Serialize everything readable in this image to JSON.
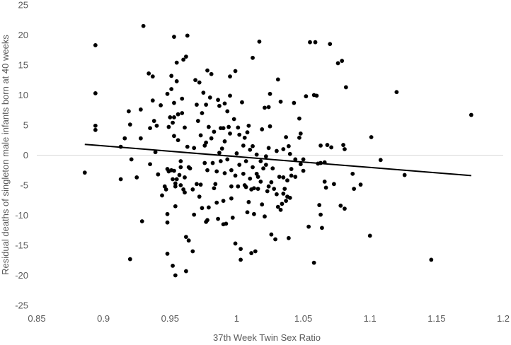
{
  "chart_data": {
    "type": "scatter",
    "xlabel": "37th Week Twin Sex Ratio",
    "ylabel": "Residual deaths of singleton male infants born at 40 weeks",
    "xlim": [
      0.85,
      1.2
    ],
    "ylim": [
      -25,
      25
    ],
    "x_ticks": [
      "0.85",
      "0.9",
      "0.95",
      "1",
      "1.05",
      "1.1",
      "1.15",
      "1.2"
    ],
    "y_ticks": [
      "25",
      "20",
      "15",
      "10",
      "5",
      "0",
      "-5",
      "-10",
      "-15",
      "-20",
      "-25"
    ],
    "grid": false,
    "legend": "none",
    "marker_color": "#000000",
    "trendline": {
      "type": "linear",
      "x": [
        0.886,
        1.176
      ],
      "y": [
        1.8,
        -3.4
      ],
      "color": "#000000"
    },
    "points": [
      [
        0.886,
        -2.9
      ],
      [
        0.894,
        18.3
      ],
      [
        0.894,
        10.3
      ],
      [
        0.894,
        4.9
      ],
      [
        0.894,
        4.2
      ],
      [
        0.913,
        1.4
      ],
      [
        0.913,
        -4.0
      ],
      [
        0.916,
        2.8
      ],
      [
        0.919,
        7.3
      ],
      [
        0.92,
        5.1
      ],
      [
        0.92,
        -17.3
      ],
      [
        0.921,
        -0.7
      ],
      [
        0.925,
        -3.7
      ],
      [
        0.928,
        2.8
      ],
      [
        0.928,
        7.6
      ],
      [
        0.929,
        -11.0
      ],
      [
        0.93,
        21.5
      ],
      [
        0.934,
        13.6
      ],
      [
        0.935,
        4.5
      ],
      [
        0.935,
        -1.5
      ],
      [
        0.937,
        13.1
      ],
      [
        0.937,
        9.1
      ],
      [
        0.938,
        5.7
      ],
      [
        0.939,
        0.5
      ],
      [
        0.94,
        4.9
      ],
      [
        0.941,
        -3.2
      ],
      [
        0.943,
        8.3
      ],
      [
        0.944,
        -6.7
      ],
      [
        0.946,
        -5.2
      ],
      [
        0.947,
        -5.7
      ],
      [
        0.948,
        -2.3
      ],
      [
        0.948,
        10.2
      ],
      [
        0.948,
        -9.8
      ],
      [
        0.948,
        -11.2
      ],
      [
        0.948,
        -16.4
      ],
      [
        0.949,
        -2.7
      ],
      [
        0.949,
        4.7
      ],
      [
        0.95,
        6.3
      ],
      [
        0.951,
        13.2
      ],
      [
        0.951,
        11.0
      ],
      [
        0.951,
        -2.5
      ],
      [
        0.952,
        5.4
      ],
      [
        0.952,
        -4.0
      ],
      [
        0.952,
        -18.4
      ],
      [
        0.953,
        19.7
      ],
      [
        0.953,
        8.7
      ],
      [
        0.953,
        6.3
      ],
      [
        0.953,
        3.2
      ],
      [
        0.953,
        -2.6
      ],
      [
        0.954,
        -4.7
      ],
      [
        0.954,
        -5.2
      ],
      [
        0.954,
        -8.5
      ],
      [
        0.954,
        -20.0
      ],
      [
        0.955,
        15.4
      ],
      [
        0.955,
        12.3
      ],
      [
        0.955,
        -4.0
      ],
      [
        0.956,
        2.5
      ],
      [
        0.956,
        6.8
      ],
      [
        0.957,
        -3.3
      ],
      [
        0.958,
        -1.0
      ],
      [
        0.958,
        -2.0
      ],
      [
        0.958,
        -5.0
      ],
      [
        0.959,
        9.4
      ],
      [
        0.959,
        7.0
      ],
      [
        0.96,
        -5.7
      ],
      [
        0.96,
        15.9
      ],
      [
        0.961,
        4.6
      ],
      [
        0.961,
        -3.7
      ],
      [
        0.961,
        -6.2
      ],
      [
        0.962,
        16.4
      ],
      [
        0.962,
        -13.6
      ],
      [
        0.962,
        -19.3
      ],
      [
        0.963,
        19.9
      ],
      [
        0.963,
        1.4
      ],
      [
        0.964,
        -14.2
      ],
      [
        0.964,
        -2.0
      ],
      [
        0.965,
        -2.2
      ],
      [
        0.967,
        -5.7
      ],
      [
        0.967,
        -16.0
      ],
      [
        0.968,
        1.2
      ],
      [
        0.968,
        -9.9
      ],
      [
        0.969,
        12.5
      ],
      [
        0.97,
        -4.8
      ],
      [
        0.97,
        8.4
      ],
      [
        0.971,
        5.7
      ],
      [
        0.972,
        12.1
      ],
      [
        0.972,
        -6.9
      ],
      [
        0.973,
        3.3
      ],
      [
        0.973,
        -4.9
      ],
      [
        0.974,
        7.0
      ],
      [
        0.974,
        -8.8
      ],
      [
        0.975,
        10.4
      ],
      [
        0.976,
        1.6
      ],
      [
        0.976,
        -1.3
      ],
      [
        0.977,
        8.4
      ],
      [
        0.977,
        2.1
      ],
      [
        0.977,
        -11.1
      ],
      [
        0.978,
        14.1
      ],
      [
        0.978,
        -2.5
      ],
      [
        0.978,
        -10.8
      ],
      [
        0.979,
        4.7
      ],
      [
        0.979,
        -8.7
      ],
      [
        0.98,
        9.6
      ],
      [
        0.981,
        2.8
      ],
      [
        0.981,
        13.5
      ],
      [
        0.982,
        -1.3
      ],
      [
        0.983,
        3.9
      ],
      [
        0.983,
        -5.5
      ],
      [
        0.984,
        -4.8
      ],
      [
        0.985,
        -2.7
      ],
      [
        0.985,
        -7.9
      ],
      [
        0.986,
        9.2
      ],
      [
        0.986,
        -10.6
      ],
      [
        0.987,
        8.2
      ],
      [
        0.987,
        0.4
      ],
      [
        0.988,
        4.5
      ],
      [
        0.988,
        -1.0
      ],
      [
        0.989,
        1.1
      ],
      [
        0.99,
        -7.6
      ],
      [
        0.99,
        -11.5
      ],
      [
        0.99,
        4.5
      ],
      [
        0.991,
        8.6
      ],
      [
        0.991,
        -3.0
      ],
      [
        0.991,
        2.3
      ],
      [
        0.992,
        -11.4
      ],
      [
        0.993,
        -0.7
      ],
      [
        0.993,
        7.3
      ],
      [
        0.994,
        4.7
      ],
      [
        0.995,
        13.1
      ],
      [
        0.995,
        9.9
      ],
      [
        0.995,
        3.6
      ],
      [
        0.996,
        -2.5
      ],
      [
        0.996,
        -5.2
      ],
      [
        0.996,
        -7.2
      ],
      [
        0.997,
        -10.4
      ],
      [
        0.998,
        6.0
      ],
      [
        0.999,
        14.0
      ],
      [
        0.999,
        -3.4
      ],
      [
        0.999,
        -14.7
      ],
      [
        1.0,
        0.3
      ],
      [
        1.001,
        -5.2
      ],
      [
        1.001,
        4.6
      ],
      [
        1.002,
        -1.6
      ],
      [
        1.002,
        3.4
      ],
      [
        1.003,
        -15.6
      ],
      [
        1.003,
        -17.4
      ],
      [
        1.004,
        8.8
      ],
      [
        1.005,
        1.6
      ],
      [
        1.005,
        -3.1
      ],
      [
        1.006,
        -5.0
      ],
      [
        1.006,
        2.9
      ],
      [
        1.007,
        -1.0
      ],
      [
        1.007,
        -5.3
      ],
      [
        1.008,
        -9.5
      ],
      [
        1.008,
        3.8
      ],
      [
        1.009,
        -7.8
      ],
      [
        1.009,
        4.9
      ],
      [
        1.01,
        0.9
      ],
      [
        1.01,
        -3.9
      ],
      [
        1.011,
        -5.7
      ],
      [
        1.011,
        -16.3
      ],
      [
        1.012,
        1.5
      ],
      [
        1.012,
        -2.0
      ],
      [
        1.012,
        16.2
      ],
      [
        1.013,
        -5.5
      ],
      [
        1.013,
        -9.8
      ],
      [
        1.014,
        -16.0
      ],
      [
        1.015,
        -3.1
      ],
      [
        1.015,
        0.1
      ],
      [
        1.016,
        -3.6
      ],
      [
        1.016,
        -5.6
      ],
      [
        1.017,
        18.9
      ],
      [
        1.018,
        -1.0
      ],
      [
        1.018,
        -4.4
      ],
      [
        1.019,
        -8.2
      ],
      [
        1.019,
        4.3
      ],
      [
        1.02,
        -2.2
      ],
      [
        1.021,
        -10.2
      ],
      [
        1.021,
        7.9
      ],
      [
        1.022,
        -0.2
      ],
      [
        1.022,
        -1.6
      ],
      [
        1.023,
        -6.0
      ],
      [
        1.024,
        8.0
      ],
      [
        1.024,
        -5.2
      ],
      [
        1.024,
        1.2
      ],
      [
        1.025,
        10.2
      ],
      [
        1.025,
        4.8
      ],
      [
        1.026,
        -4.5
      ],
      [
        1.026,
        -13.2
      ],
      [
        1.027,
        -2.2
      ],
      [
        1.028,
        -5.6
      ],
      [
        1.029,
        -14.0
      ],
      [
        1.03,
        0.7
      ],
      [
        1.03,
        -6.5
      ],
      [
        1.031,
        -8.6
      ],
      [
        1.031,
        12.6
      ],
      [
        1.032,
        -3.6
      ],
      [
        1.033,
        8.9
      ],
      [
        1.033,
        -9.1
      ],
      [
        1.034,
        -8.1
      ],
      [
        1.035,
        1.0
      ],
      [
        1.035,
        -3.7
      ],
      [
        1.035,
        -6.4
      ],
      [
        1.036,
        -5.6
      ],
      [
        1.037,
        3.0
      ],
      [
        1.037,
        -7.6
      ],
      [
        1.038,
        -4.2
      ],
      [
        1.038,
        -6.9
      ],
      [
        1.039,
        1.5
      ],
      [
        1.039,
        -13.8
      ],
      [
        1.04,
        -7.1
      ],
      [
        1.04,
        0.2
      ],
      [
        1.041,
        -2.3
      ],
      [
        1.041,
        -3.4
      ],
      [
        1.043,
        8.7
      ],
      [
        1.044,
        -3.6
      ],
      [
        1.044,
        -0.7
      ],
      [
        1.047,
        2.9
      ],
      [
        1.047,
        6.1
      ],
      [
        1.048,
        3.6
      ],
      [
        1.048,
        -1.5
      ],
      [
        1.05,
        -2.6
      ],
      [
        1.05,
        -0.7
      ],
      [
        1.052,
        9.8
      ],
      [
        1.054,
        -11.9
      ],
      [
        1.055,
        18.8
      ],
      [
        1.058,
        10.0
      ],
      [
        1.058,
        -17.9
      ],
      [
        1.059,
        18.8
      ],
      [
        1.06,
        9.9
      ],
      [
        1.061,
        -1.4
      ],
      [
        1.062,
        -8.3
      ],
      [
        1.063,
        -9.9
      ],
      [
        1.063,
        -1.3
      ],
      [
        1.063,
        1.6
      ],
      [
        1.064,
        -12.1
      ],
      [
        1.066,
        -1.2
      ],
      [
        1.066,
        -4.4
      ],
      [
        1.067,
        -5.4
      ],
      [
        1.068,
        1.7
      ],
      [
        1.07,
        18.5
      ],
      [
        1.071,
        1.3
      ],
      [
        1.073,
        -4.8
      ],
      [
        1.076,
        15.3
      ],
      [
        1.078,
        -8.4
      ],
      [
        1.079,
        15.7
      ],
      [
        1.08,
        1.7
      ],
      [
        1.081,
        -8.9
      ],
      [
        1.081,
        1.0
      ],
      [
        1.082,
        11.3
      ],
      [
        1.087,
        -3.1
      ],
      [
        1.088,
        -5.6
      ],
      [
        1.093,
        -4.9
      ],
      [
        1.1,
        -13.4
      ],
      [
        1.101,
        3.0
      ],
      [
        1.108,
        -0.8
      ],
      [
        1.12,
        10.5
      ],
      [
        1.126,
        -3.3
      ],
      [
        1.146,
        -17.4
      ],
      [
        1.176,
        6.7
      ]
    ]
  }
}
